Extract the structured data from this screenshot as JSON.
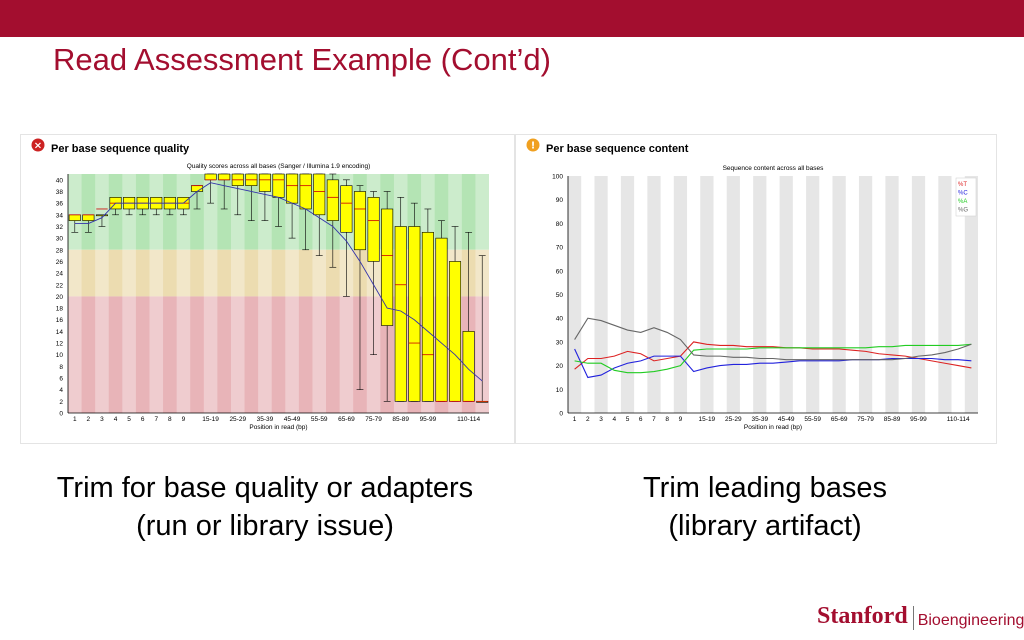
{
  "slide": {
    "title": "Read Assessment Example (Cont’d)",
    "captions": {
      "left_line1": "Trim for base quality or adapters",
      "left_line2": "(run or library issue)",
      "right_line1": "Trim leading bases",
      "right_line2": "(library artifact)"
    },
    "logo": {
      "stanford": "Stanford",
      "department": "Bioengineering"
    }
  },
  "colors": {
    "brand": "#a30e2f",
    "zone_good": "#b4e4b4",
    "zone_warn": "#ecdcb0",
    "zone_bad": "#e8b4b8",
    "box_fill": "#ffff00",
    "fail_icon": "#cc2222",
    "warn_icon": "#f0a020"
  },
  "chart_data": [
    {
      "type": "box",
      "panel_title": "Per base sequence quality",
      "status_icon": "fail-icon",
      "title": "Quality scores across all bases (Sanger / Illumina 1.9 encoding)",
      "xlabel": "Position in read (bp)",
      "ylabel": "",
      "ylim": [
        0,
        41
      ],
      "yticks": [
        0,
        2,
        4,
        6,
        8,
        10,
        12,
        14,
        16,
        18,
        20,
        22,
        24,
        26,
        28,
        30,
        32,
        34,
        36,
        38,
        40
      ],
      "zones": [
        {
          "name": "good",
          "from": 28,
          "to": 41
        },
        {
          "name": "reasonable",
          "from": 20,
          "to": 28
        },
        {
          "name": "poor",
          "from": 0,
          "to": 20
        }
      ],
      "categories": [
        "1",
        "2",
        "3",
        "4",
        "5",
        "6",
        "7",
        "8",
        "9",
        "10-14",
        "15-19",
        "20-24",
        "25-29",
        "30-34",
        "35-39",
        "40-44",
        "45-49",
        "50-54",
        "55-59",
        "60-64",
        "65-69",
        "70-74",
        "75-79",
        "80-84",
        "85-89",
        "90-94",
        "95-99",
        "100-104",
        "105-109",
        "110-114",
        "115-119"
      ],
      "xtick_labels": [
        "1",
        "2",
        "3",
        "4",
        "5",
        "6",
        "7",
        "8",
        "9",
        "15-19",
        "25-29",
        "35-39",
        "45-49",
        "55-59",
        "65-69",
        "75-79",
        "85-89",
        "95-99",
        "110-114"
      ],
      "series": [
        {
          "stat": "whisker_low",
          "values": [
            31,
            31,
            32,
            34,
            34,
            34,
            34,
            34,
            34,
            35,
            36,
            35,
            34,
            33,
            33,
            32,
            30,
            28,
            27,
            25,
            20,
            4,
            10,
            2,
            2,
            2,
            2,
            2,
            2,
            2,
            2
          ]
        },
        {
          "stat": "q1",
          "values": [
            33,
            33,
            34,
            35,
            35,
            35,
            35,
            35,
            35,
            38,
            40,
            40,
            39,
            39,
            38,
            37,
            36,
            35,
            34,
            33,
            31,
            28,
            26,
            15,
            2,
            2,
            2,
            2,
            2,
            2,
            2
          ]
        },
        {
          "stat": "median",
          "values": [
            34,
            34,
            35,
            36,
            36,
            36,
            36,
            36,
            36,
            39,
            40,
            40,
            40,
            40,
            40,
            40,
            39,
            39,
            38,
            37,
            36,
            35,
            33,
            27,
            22,
            12,
            10,
            2,
            2,
            2,
            2
          ]
        },
        {
          "stat": "q3",
          "values": [
            34,
            34,
            34,
            37,
            37,
            37,
            37,
            37,
            37,
            39,
            41,
            41,
            41,
            41,
            41,
            41,
            41,
            41,
            41,
            40,
            39,
            38,
            37,
            35,
            32,
            32,
            31,
            30,
            26,
            14,
            2
          ]
        },
        {
          "stat": "whisker_high",
          "values": [
            34,
            34,
            34,
            37,
            37,
            37,
            37,
            37,
            37,
            39,
            41,
            41,
            41,
            41,
            41,
            41,
            41,
            41,
            41,
            41,
            40,
            39,
            38,
            38,
            37,
            36,
            35,
            33,
            32,
            31,
            27
          ]
        },
        {
          "stat": "mean",
          "values": [
            32.5,
            32.5,
            33.5,
            36,
            36,
            36,
            36,
            36,
            36,
            38,
            39.5,
            39,
            38.5,
            38,
            37.5,
            37,
            36,
            35,
            33.5,
            32,
            29.5,
            26,
            22,
            18,
            17.5,
            16,
            14,
            12,
            10,
            7.5,
            5.5
          ]
        }
      ]
    },
    {
      "type": "line",
      "panel_title": "Per base sequence content",
      "status_icon": "warn-icon",
      "title": "Sequence content across all bases",
      "xlabel": "Position in read (bp)",
      "ylabel": "",
      "ylim": [
        0,
        100
      ],
      "yticks": [
        0,
        10,
        20,
        30,
        40,
        50,
        60,
        70,
        80,
        90,
        100
      ],
      "legend_position": "top-right",
      "categories": [
        "1",
        "2",
        "3",
        "4",
        "5",
        "6",
        "7",
        "8",
        "9",
        "10-14",
        "15-19",
        "20-24",
        "25-29",
        "30-34",
        "35-39",
        "40-44",
        "45-49",
        "50-54",
        "55-59",
        "60-64",
        "65-69",
        "70-74",
        "75-79",
        "80-84",
        "85-89",
        "90-94",
        "95-99",
        "100-104",
        "105-109",
        "110-114",
        "115-119"
      ],
      "xtick_labels": [
        "1",
        "2",
        "3",
        "4",
        "5",
        "6",
        "7",
        "8",
        "9",
        "15-19",
        "25-29",
        "35-39",
        "45-49",
        "55-59",
        "65-69",
        "75-79",
        "85-89",
        "95-99",
        "110-114"
      ],
      "series": [
        {
          "name": "%T",
          "color": "#dd2222",
          "values": [
            18.5,
            23,
            23,
            24,
            26,
            25,
            22,
            23,
            24,
            30,
            29,
            28.5,
            28.5,
            28,
            28,
            28,
            27.5,
            27.5,
            27,
            27,
            27,
            26.5,
            26,
            25,
            24.5,
            24,
            23,
            22,
            21,
            20,
            19
          ]
        },
        {
          "name": "%C",
          "color": "#2222dd",
          "values": [
            27,
            15,
            16,
            19,
            21,
            22,
            24,
            24,
            24,
            17.5,
            19,
            20,
            20.5,
            20.5,
            21,
            21,
            21.5,
            22,
            22,
            22,
            22,
            22.5,
            22.5,
            22.5,
            23,
            23,
            23,
            23,
            22.5,
            22.5,
            22
          ]
        },
        {
          "name": "%A",
          "color": "#22cc22",
          "values": [
            22,
            21,
            21,
            18,
            17,
            17,
            17.5,
            18.5,
            20,
            26.5,
            27,
            27,
            27,
            27,
            27.5,
            27.5,
            27.5,
            27.5,
            27.5,
            27.5,
            27.5,
            27.5,
            27.5,
            28,
            28,
            28.5,
            28.5,
            28.5,
            28.5,
            28.5,
            29
          ]
        },
        {
          "name": "%G",
          "color": "#666666",
          "values": [
            31,
            40,
            39,
            37,
            35,
            34,
            36,
            34,
            31,
            24.5,
            24,
            24,
            23.5,
            23.5,
            23,
            23,
            22.5,
            22.5,
            22.5,
            22.5,
            22.5,
            22.5,
            22.5,
            22.5,
            22.5,
            23,
            24,
            24.5,
            25.5,
            27,
            29
          ]
        }
      ]
    }
  ]
}
